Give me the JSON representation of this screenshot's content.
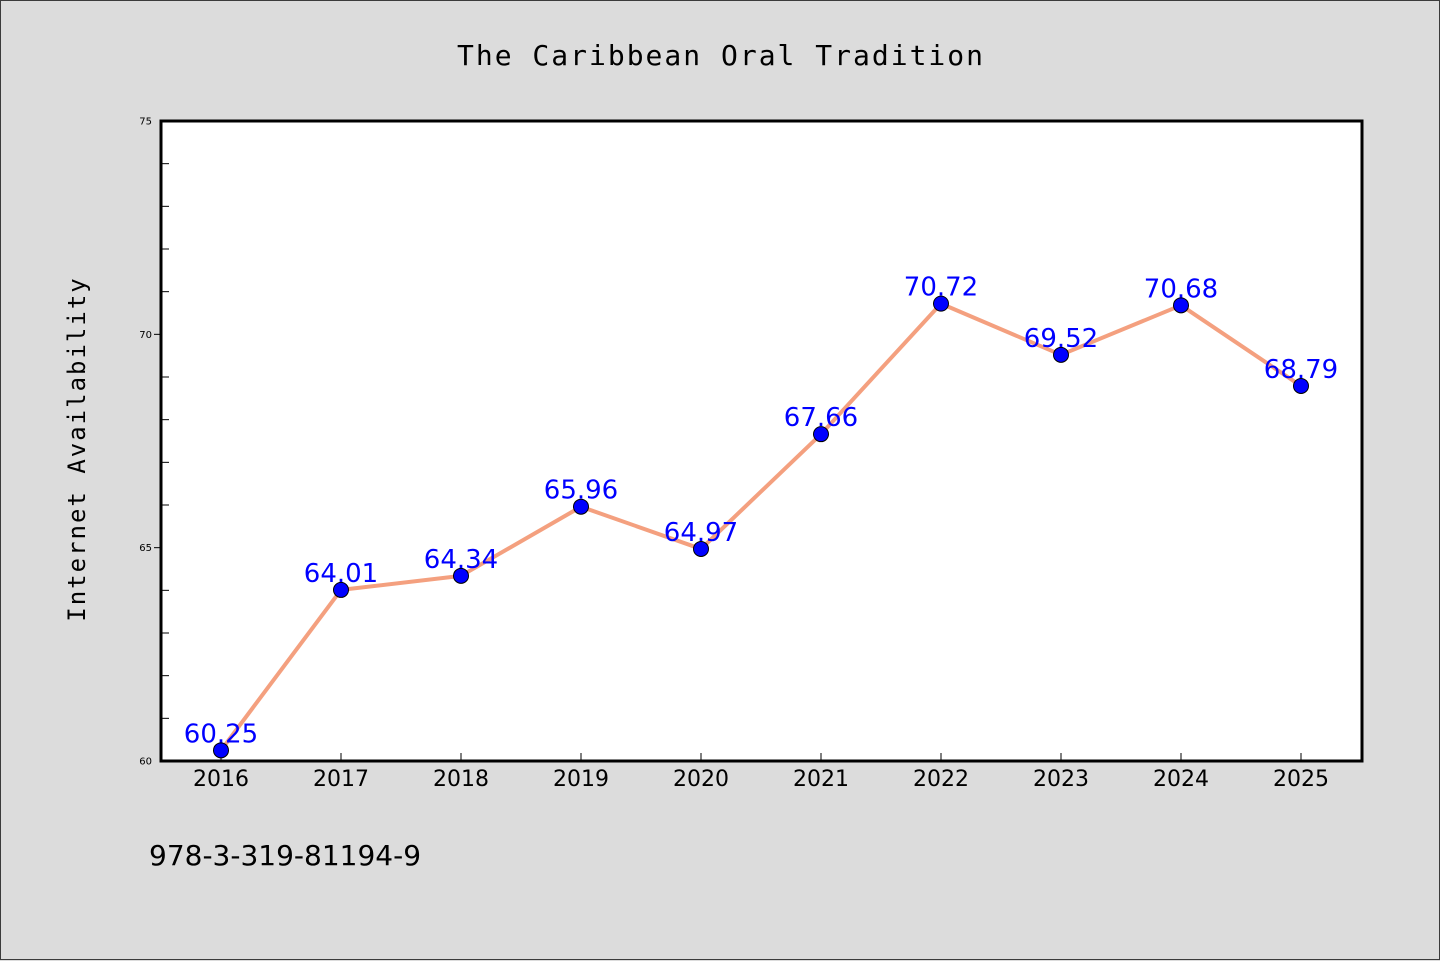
{
  "chart_data": {
    "type": "line",
    "title": "The Caribbean Oral Tradition",
    "xlabel": "",
    "ylabel": "Internet Availability",
    "categories": [
      "2016",
      "2017",
      "2018",
      "2019",
      "2020",
      "2021",
      "2022",
      "2023",
      "2024",
      "2025"
    ],
    "series": [
      {
        "values": [
          60.25,
          64.01,
          64.34,
          65.96,
          64.97,
          67.66,
          70.72,
          69.52,
          70.68,
          68.79
        ]
      }
    ],
    "data_labels": [
      "60.25",
      "64.01",
      "64.34",
      "65.96",
      "64.97",
      "67.66",
      "70.72",
      "69.52",
      "70.68",
      "68.79"
    ],
    "ylim": [
      60,
      75
    ],
    "y_ticks": [
      "60",
      "65",
      "70",
      "75"
    ],
    "grid": false,
    "legend": "none",
    "footnote": "978-3-319-81194-9",
    "colors": {
      "background": "#dcdcdc",
      "plot_background": "#ffffff",
      "line": "#f4a07f",
      "marker": "#0000ff",
      "data_label": "#0000ff",
      "axis": "#000000"
    }
  }
}
